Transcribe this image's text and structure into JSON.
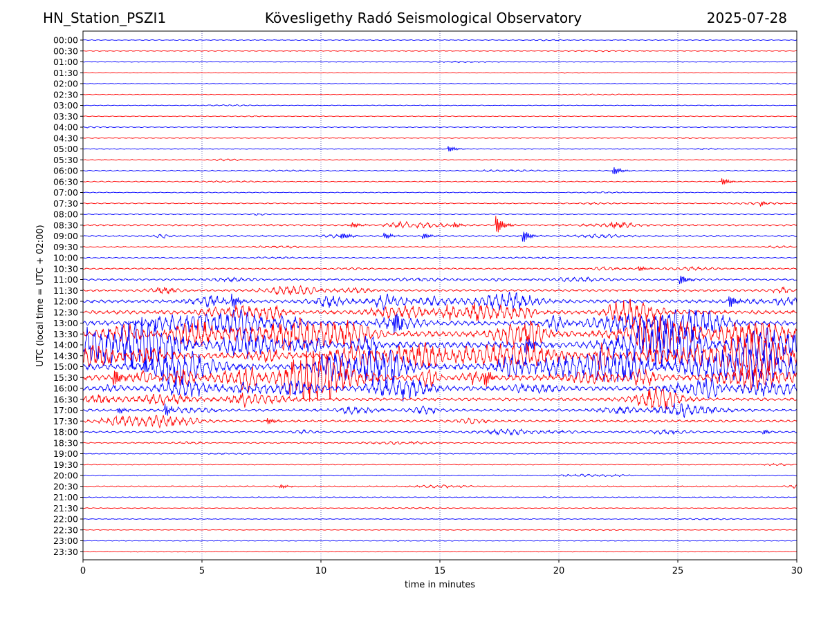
{
  "header": {
    "station": "HN_Station_PSZI1",
    "observatory": "Kövesligethy Radó Seismological Observatory",
    "date": "2025-07-28"
  },
  "chart_data": {
    "type": "line",
    "title": "Kövesligethy Radó Seismological Observatory",
    "xlabel": "time in minutes",
    "ylabel": "UTC (local time = UTC + 02:00)",
    "xlim": [
      0,
      30
    ],
    "xticks": [
      "0",
      "5",
      "10",
      "15",
      "20",
      "25",
      "30"
    ],
    "grid": "vertical dotted at 5-minute intervals",
    "trace_colors": [
      "#0000ff",
      "#ff0000"
    ],
    "rows": [
      "00:00",
      "00:30",
      "01:00",
      "01:30",
      "02:00",
      "02:30",
      "03:00",
      "03:30",
      "04:00",
      "04:30",
      "05:00",
      "05:30",
      "06:00",
      "06:30",
      "07:00",
      "07:30",
      "08:00",
      "08:30",
      "09:00",
      "09:30",
      "10:00",
      "10:30",
      "11:00",
      "11:30",
      "12:00",
      "12:30",
      "13:00",
      "13:30",
      "14:00",
      "14:30",
      "15:00",
      "15:30",
      "16:00",
      "16:30",
      "17:00",
      "17:30",
      "18:00",
      "18:30",
      "19:00",
      "19:30",
      "20:00",
      "20:30",
      "21:00",
      "21:30",
      "22:00",
      "22:30",
      "23:00",
      "23:30"
    ],
    "activity_level": [
      0.08,
      0.07,
      0.06,
      0.05,
      0.05,
      0.05,
      0.06,
      0.07,
      0.08,
      0.07,
      0.1,
      0.12,
      0.15,
      0.14,
      0.1,
      0.15,
      0.12,
      0.35,
      0.3,
      0.18,
      0.15,
      0.25,
      0.4,
      0.5,
      0.8,
      0.95,
      1.2,
      1.5,
      1.6,
      1.7,
      1.6,
      1.5,
      1.1,
      0.7,
      0.6,
      0.5,
      0.35,
      0.2,
      0.12,
      0.12,
      0.15,
      0.2,
      0.12,
      0.08,
      0.07,
      0.06,
      0.06,
      0.06
    ],
    "events": [
      {
        "row": "05:00",
        "minute": 15.4,
        "amp": 0.6
      },
      {
        "row": "06:00",
        "minute": 22.3,
        "amp": 0.9
      },
      {
        "row": "06:30",
        "minute": 26.9,
        "amp": 0.7
      },
      {
        "row": "07:30",
        "minute": 28.5,
        "amp": 0.5
      },
      {
        "row": "08:30",
        "minute": 11.3,
        "amp": 0.6
      },
      {
        "row": "08:30",
        "minute": 15.6,
        "amp": 0.6
      },
      {
        "row": "08:30",
        "minute": 17.4,
        "amp": 1.8
      },
      {
        "row": "08:30",
        "minute": 22.2,
        "amp": 0.6
      },
      {
        "row": "09:00",
        "minute": 10.9,
        "amp": 0.6
      },
      {
        "row": "09:00",
        "minute": 12.7,
        "amp": 0.6
      },
      {
        "row": "09:00",
        "minute": 14.3,
        "amp": 0.6
      },
      {
        "row": "09:00",
        "minute": 18.5,
        "amp": 1.4
      },
      {
        "row": "10:30",
        "minute": 23.4,
        "amp": 0.5
      },
      {
        "row": "11:00",
        "minute": 25.1,
        "amp": 1.1
      },
      {
        "row": "11:30",
        "minute": 3.2,
        "amp": 0.6
      },
      {
        "row": "12:00",
        "minute": 6.3,
        "amp": 1.3
      },
      {
        "row": "12:00",
        "minute": 27.2,
        "amp": 1.3
      },
      {
        "row": "13:00",
        "minute": 13.1,
        "amp": 2.2
      },
      {
        "row": "14:00",
        "minute": 18.6,
        "amp": 2.0
      },
      {
        "row": "15:30",
        "minute": 1.3,
        "amp": 2.0
      },
      {
        "row": "15:30",
        "minute": 16.9,
        "amp": 1.6
      },
      {
        "row": "17:00",
        "minute": 1.5,
        "amp": 0.8
      },
      {
        "row": "17:00",
        "minute": 3.5,
        "amp": 1.2
      },
      {
        "row": "17:30",
        "minute": 7.8,
        "amp": 0.6
      },
      {
        "row": "18:00",
        "minute": 28.6,
        "amp": 0.5
      },
      {
        "row": "20:30",
        "minute": 8.3,
        "amp": 0.4
      }
    ]
  }
}
